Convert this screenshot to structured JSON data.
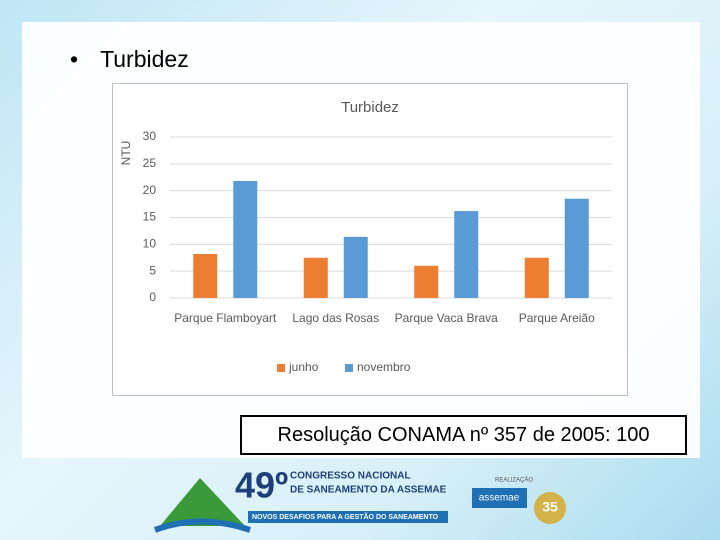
{
  "slide": {
    "bullet": "Turbidez",
    "note": "Resolução CONAMA nº 357 de 2005: 100",
    "footer": {
      "edition": "49º",
      "event_line1": "CONGRESSO NACIONAL",
      "event_line2": "DE SANEAMENTO DA ASSEMAE",
      "tagline": "NOVOS DESAFIOS PARA A GESTÃO DO SANEAMENTO",
      "realizacao": "REALIZAÇÃO",
      "org": "assemae",
      "anniversary": "35"
    }
  },
  "chart_data": {
    "type": "bar",
    "title": "Turbidez",
    "y_label": "NTU",
    "categories": [
      "Parque Flamboyart",
      "Lago das Rosas",
      "Parque Vaca Brava",
      "Parque Areião"
    ],
    "series": [
      {
        "name": "junho",
        "color": "#ed7d31",
        "values": [
          8.2,
          7.5,
          6,
          7.5
        ]
      },
      {
        "name": "novembro",
        "color": "#5b9bd5",
        "values": [
          21.8,
          11.4,
          16.2,
          18.5
        ]
      }
    ],
    "ylim": [
      0,
      30
    ],
    "yticks": [
      0,
      5,
      10,
      15,
      20,
      25,
      30
    ],
    "grid": true,
    "legend": "bottom"
  }
}
